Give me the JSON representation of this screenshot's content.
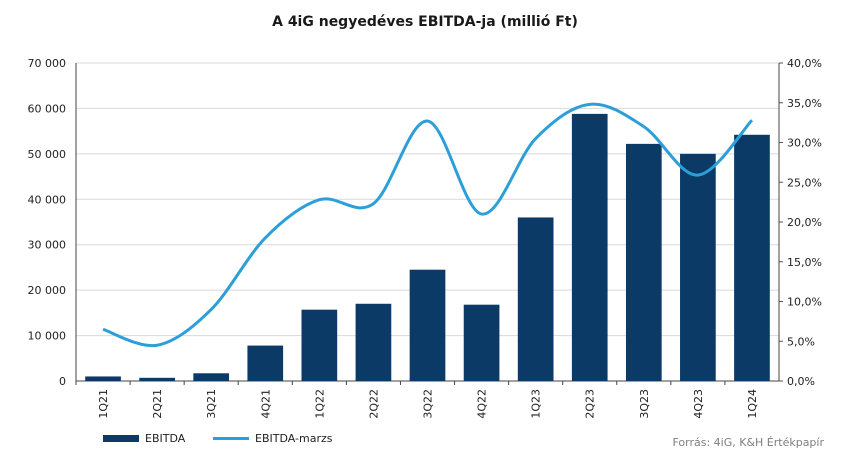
{
  "chart_data": {
    "type": "bar",
    "title": "A 4iG negyedéves EBITDA-ja (millió Ft)",
    "categories": [
      "1Q21",
      "2Q21",
      "3Q21",
      "4Q21",
      "1Q22",
      "2Q22",
      "3Q22",
      "4Q22",
      "1Q23",
      "2Q23",
      "3Q23",
      "4Q23",
      "1Q24"
    ],
    "series": [
      {
        "name": "EBITDA",
        "type": "bar",
        "axis": "left",
        "color": "#0b3a67",
        "values": [
          1000,
          700,
          1700,
          7800,
          15700,
          17000,
          24500,
          16800,
          36000,
          58800,
          52200,
          50000,
          54200
        ]
      },
      {
        "name": "EBITDA-marzs",
        "type": "line",
        "axis": "right",
        "color": "#2d9fd8",
        "values": [
          6.5,
          4.5,
          9.0,
          18.0,
          22.8,
          22.3,
          32.7,
          21.0,
          30.5,
          34.8,
          32.0,
          25.9,
          32.8
        ]
      }
    ],
    "ylim_left": [
      0,
      70000
    ],
    "yticks_left": [
      "0",
      "10 000",
      "20 000",
      "30 000",
      "40 000",
      "50 000",
      "60 000",
      "70 000"
    ],
    "ylim_right": [
      0,
      40
    ],
    "yticks_right": [
      "0,0%",
      "5,0%",
      "10,0%",
      "15,0%",
      "20,0%",
      "25,0%",
      "30,0%",
      "35,0%",
      "40,0%"
    ],
    "grid": true,
    "legend_position": "bottom-left",
    "source": "Forrás: 4iG, K&H Értékpapír"
  }
}
